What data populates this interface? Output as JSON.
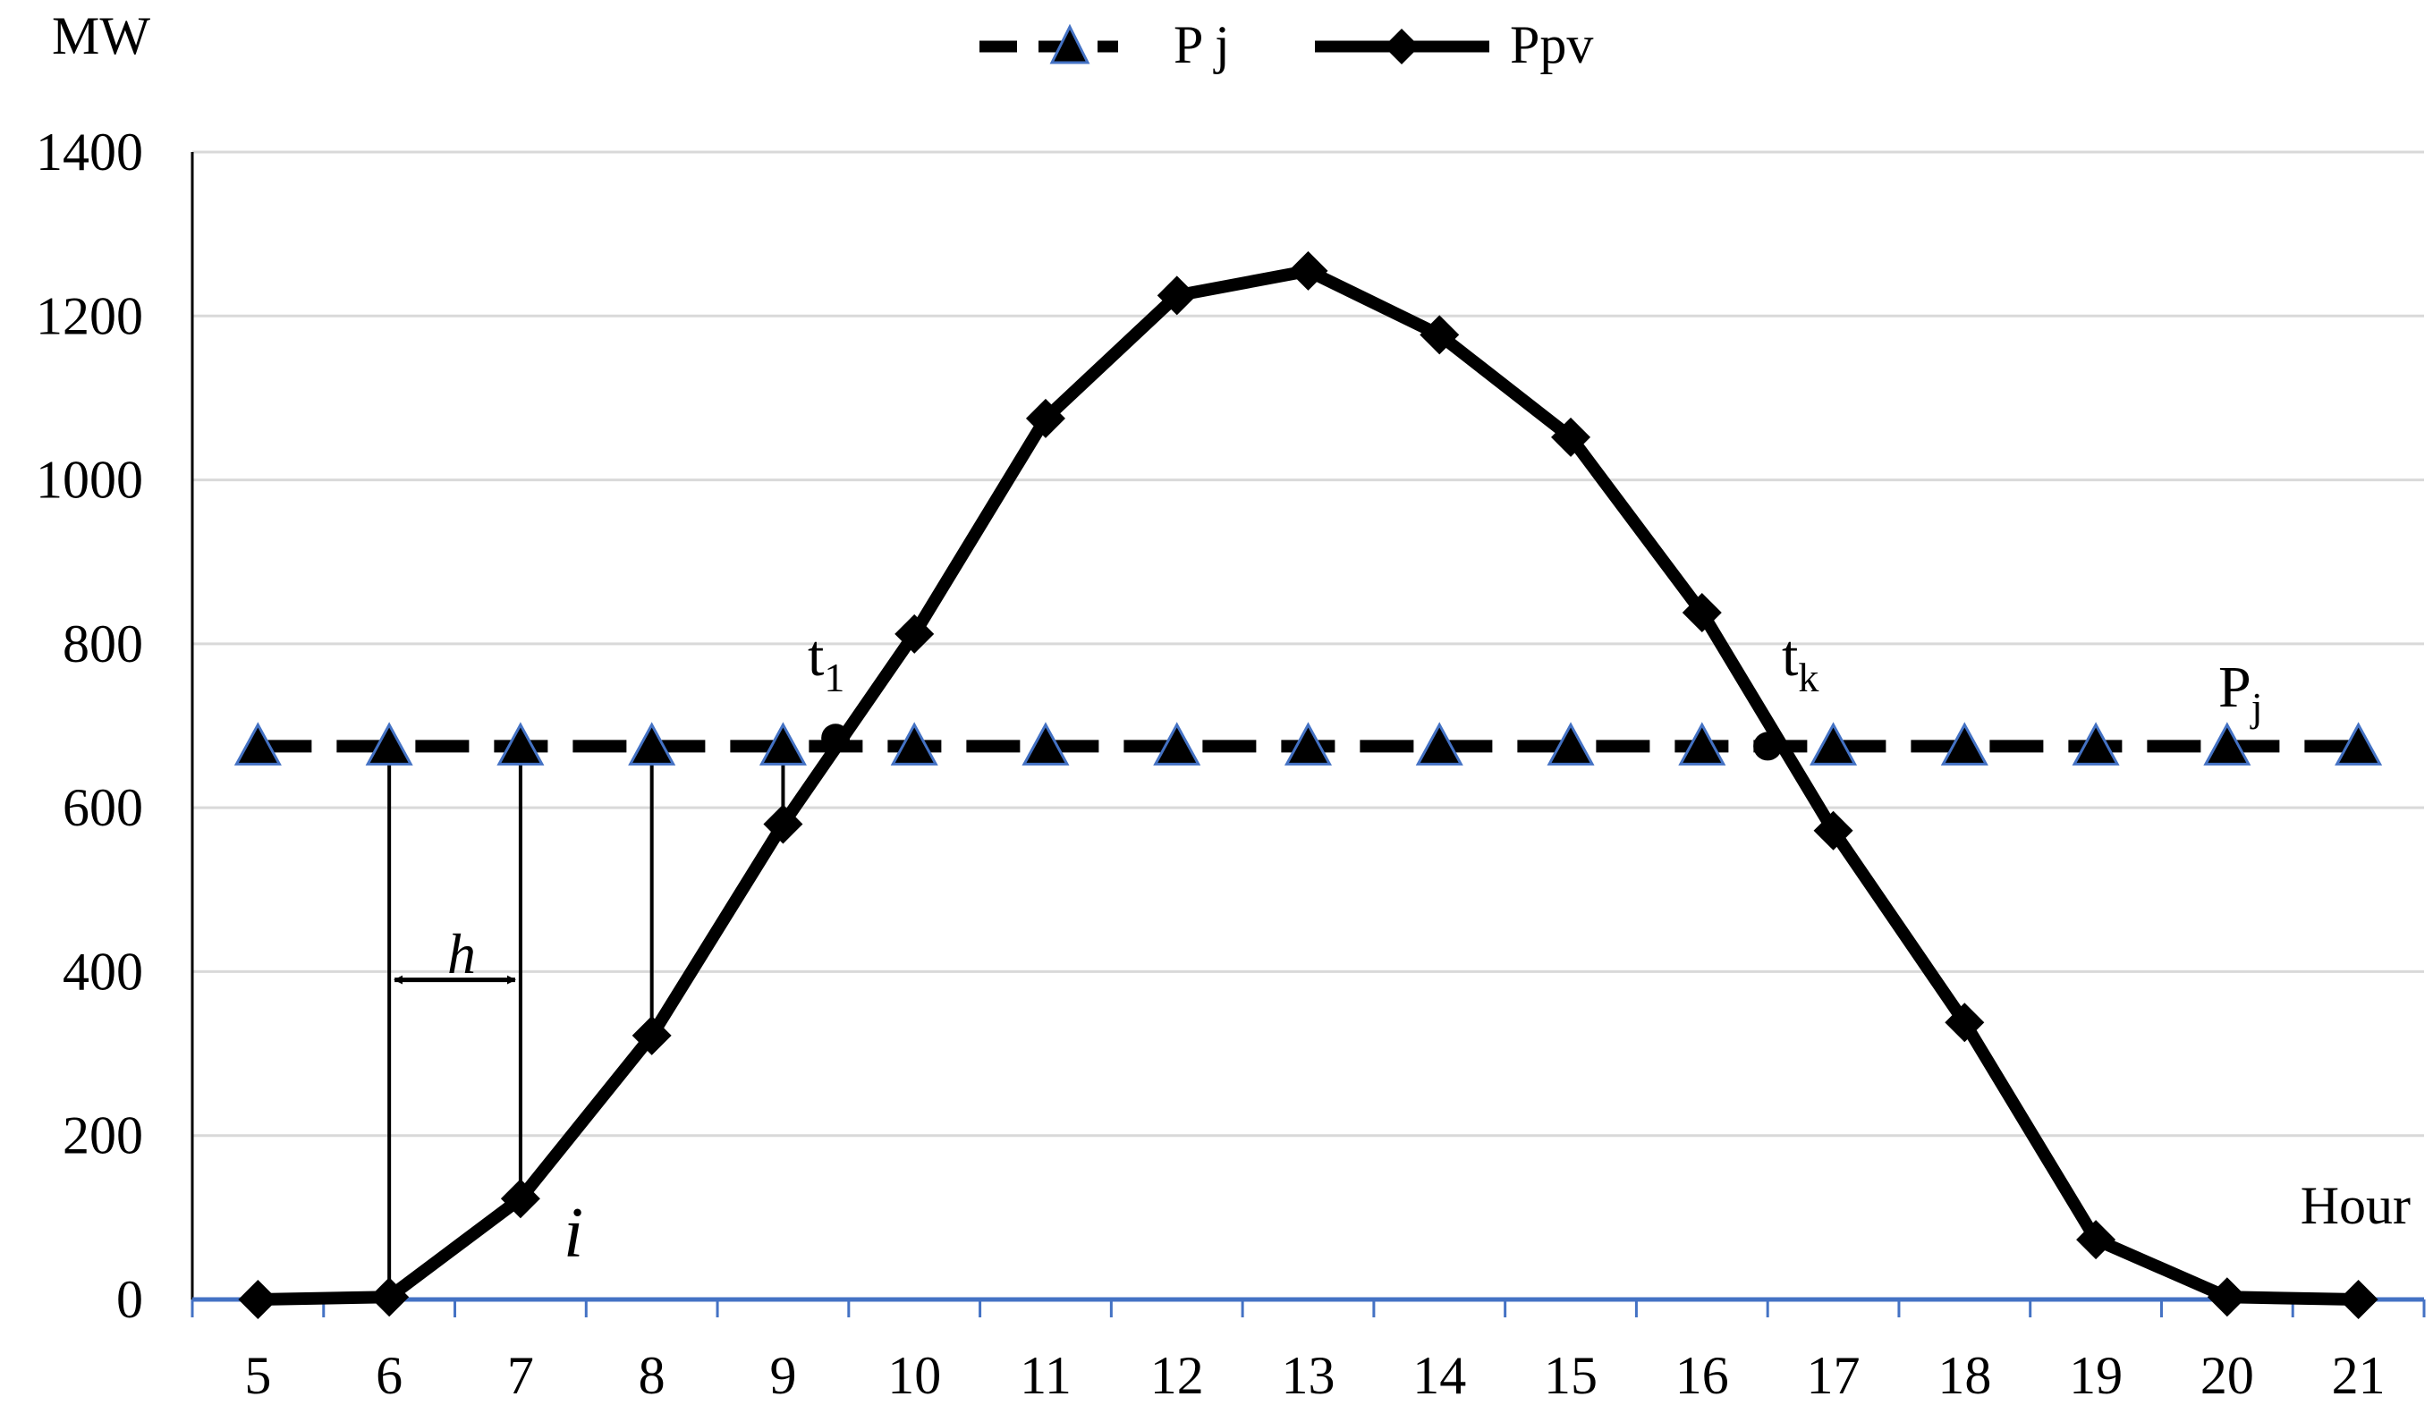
{
  "chart_data": {
    "type": "line",
    "ylabel": "MW",
    "xlabel": "Hour",
    "x": [
      5,
      6,
      7,
      8,
      9,
      10,
      11,
      12,
      13,
      14,
      15,
      16,
      17,
      18,
      19,
      20,
      21
    ],
    "ylim": [
      0,
      1400
    ],
    "yticks": [
      0,
      200,
      400,
      600,
      800,
      1000,
      1200,
      1400
    ],
    "grid": true,
    "legend_position": "top-center",
    "series": [
      {
        "name": "P j",
        "style": "dashed",
        "marker": "triangle",
        "marker_color": "#000000",
        "marker_edge_color": "#4472C4",
        "values": [
          675,
          675,
          675,
          675,
          675,
          675,
          675,
          675,
          675,
          675,
          675,
          675,
          675,
          675,
          675,
          675,
          675
        ]
      },
      {
        "name": "Ppv",
        "style": "solid",
        "marker": "diamond",
        "marker_color": "#000000",
        "values": [
          0,
          3,
          123,
          322,
          580,
          812,
          1075,
          1225,
          1255,
          1177,
          1052,
          838,
          572,
          338,
          73,
          3,
          0
        ]
      }
    ],
    "annotations": {
      "t1": {
        "base": "t",
        "sub": "1",
        "x": 9.4,
        "y": 685
      },
      "tk": {
        "base": "t",
        "sub": "k",
        "x": 16.5,
        "y": 675
      },
      "pj": {
        "base": "P",
        "sub": "j"
      },
      "h": "h",
      "i": "i",
      "h_arrow": {
        "x_from": 6,
        "x_to": 7,
        "y": 390
      },
      "vertical_drops": [
        {
          "x": 6,
          "y_top": 675,
          "y_bottom": 3
        },
        {
          "x": 7,
          "y_top": 675,
          "y_bottom": 123
        },
        {
          "x": 8,
          "y_top": 675,
          "y_bottom": 322
        },
        {
          "x": 9,
          "y_top": 675,
          "y_bottom": 580
        }
      ]
    },
    "colors": {
      "axis": "#4472C4",
      "grid": "#D9D9D9",
      "line": "#000000"
    }
  }
}
